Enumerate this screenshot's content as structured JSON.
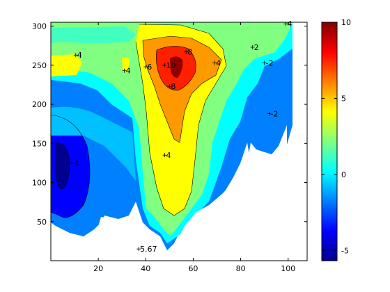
{
  "chart_data": {
    "type": "contour",
    "title": "",
    "xlabel": "",
    "ylabel": "",
    "xlim": [
      0,
      108
    ],
    "ylim": [
      0,
      305
    ],
    "xticks": [
      "20",
      "40",
      "60",
      "80",
      "100"
    ],
    "yticks": [
      "50",
      "100",
      "150",
      "200",
      "250",
      "300"
    ],
    "colormap": "jet",
    "colorbar": {
      "clim": [
        -5.67,
        10
      ],
      "ticks": [
        "-5",
        "0",
        "5",
        "10"
      ]
    },
    "peaks": [
      {
        "x": 53,
        "y": 247,
        "value": 10
      },
      {
        "x": 5,
        "y": 110,
        "value": -5.67
      }
    ],
    "contour_labels": [
      {
        "x": 10.5,
        "y": 263,
        "text": "4"
      },
      {
        "x": 31,
        "y": 243,
        "text": "4"
      },
      {
        "x": 40,
        "y": 248,
        "text": "6"
      },
      {
        "x": 57,
        "y": 267,
        "text": "8"
      },
      {
        "x": 50,
        "y": 223,
        "text": "8"
      },
      {
        "x": 48,
        "y": 250,
        "text": "10"
      },
      {
        "x": 69,
        "y": 253,
        "text": "4"
      },
      {
        "x": 85,
        "y": 273,
        "text": "2"
      },
      {
        "x": 90,
        "y": 253,
        "text": "-2"
      },
      {
        "x": 92,
        "y": 188,
        "text": "-2"
      },
      {
        "x": 48,
        "y": 135,
        "text": "4"
      },
      {
        "x": 8,
        "y": 125,
        "text": "-4"
      },
      {
        "x": 37,
        "y": 15,
        "text": "5.67"
      },
      {
        "x": 99,
        "y": 303,
        "text": "4"
      }
    ]
  }
}
